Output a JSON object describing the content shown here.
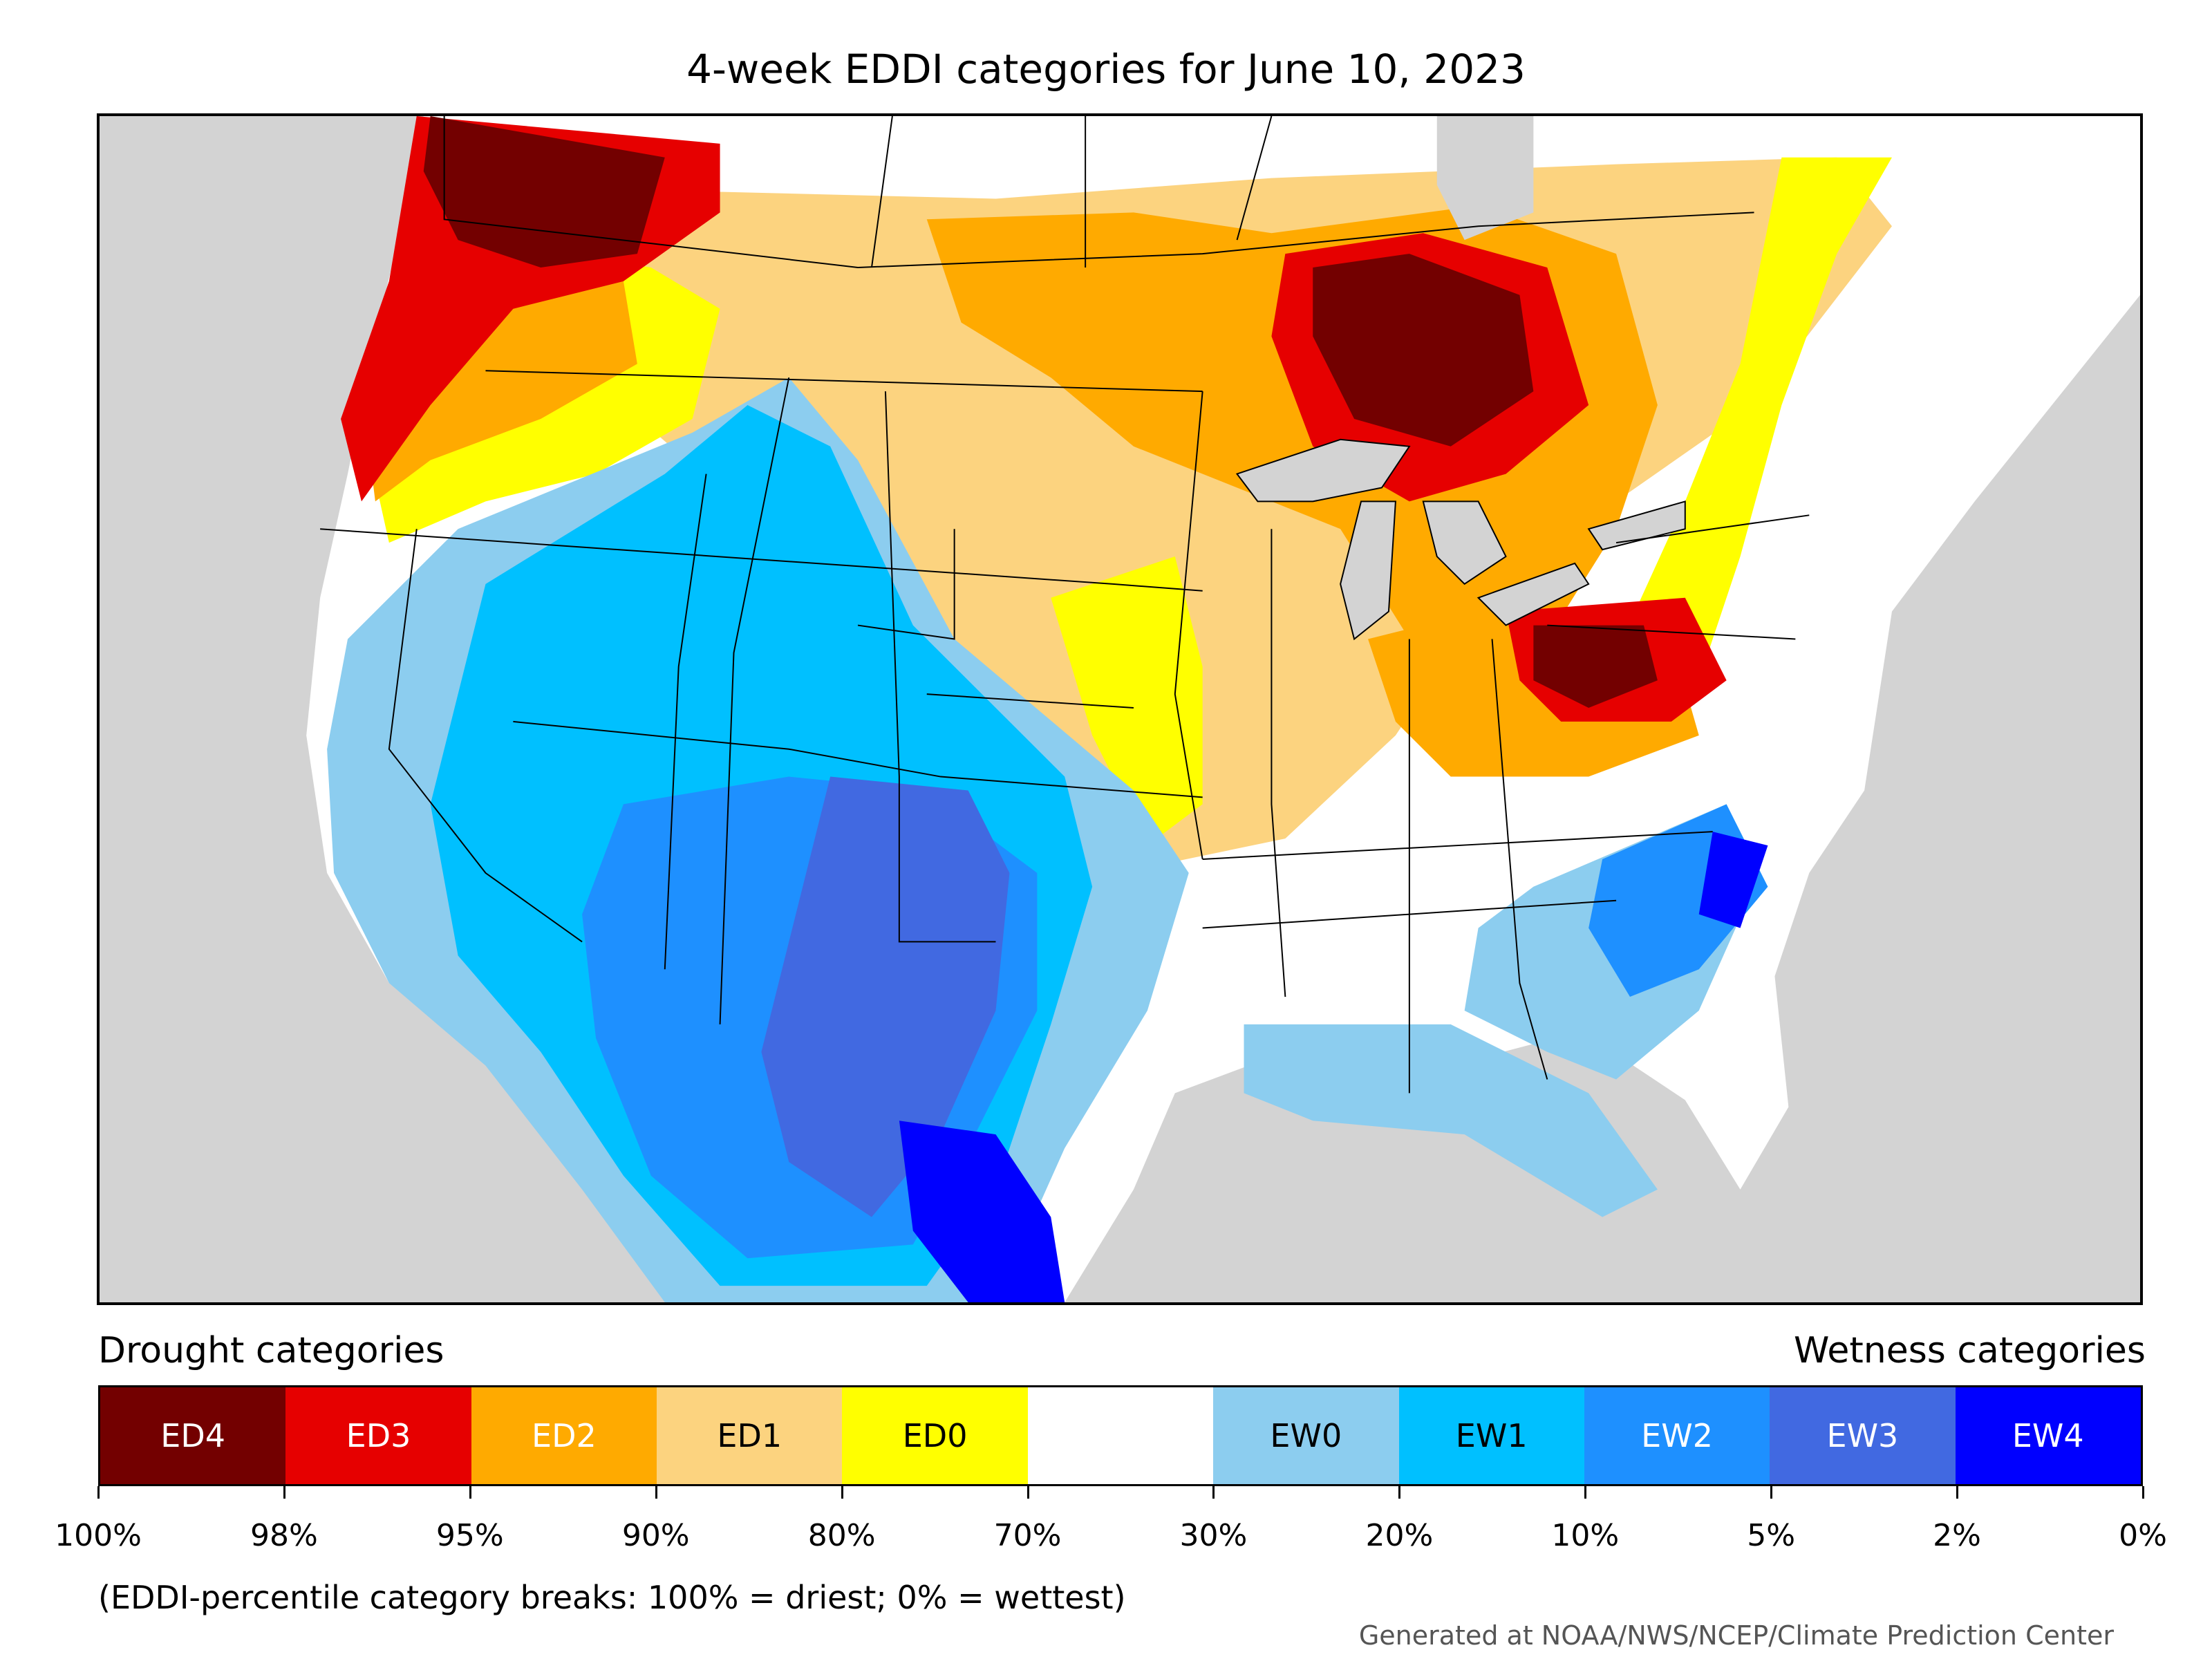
{
  "title": "4-week EDDI categories for June 10, 2023",
  "map": {
    "background_color": "#d3d3d3",
    "region_note": "Contiguous United States and southern Canada",
    "boundaries_color": "#000000"
  },
  "legend": {
    "drought_heading": "Drought categories",
    "wetness_heading": "Wetness categories",
    "categories": [
      {
        "label": "ED4",
        "color": "#730000",
        "text_color": "#ffffff"
      },
      {
        "label": "ED3",
        "color": "#e60000",
        "text_color": "#ffffff"
      },
      {
        "label": "ED2",
        "color": "#ffaa00",
        "text_color": "#ffffff"
      },
      {
        "label": "ED1",
        "color": "#fcd37f",
        "text_color": "#000000"
      },
      {
        "label": "ED0",
        "color": "#ffff00",
        "text_color": "#000000"
      },
      {
        "label": "",
        "color": "#ffffff",
        "text_color": "#000000"
      },
      {
        "label": "EW0",
        "color": "#8ccdef",
        "text_color": "#000000"
      },
      {
        "label": "EW1",
        "color": "#00c0ff",
        "text_color": "#000000"
      },
      {
        "label": "EW2",
        "color": "#1e90ff",
        "text_color": "#ffffff"
      },
      {
        "label": "EW3",
        "color": "#4169e1",
        "text_color": "#ffffff"
      },
      {
        "label": "EW4",
        "color": "#0000ff",
        "text_color": "#ffffff"
      }
    ],
    "tick_labels": [
      "100%",
      "98%",
      "95%",
      "90%",
      "80%",
      "70%",
      "30%",
      "20%",
      "10%",
      "5%",
      "2%",
      "0%"
    ],
    "breaks_note": "(EDDI-percentile category breaks: 100% = driest; 0% = wettest)"
  },
  "credit": "Generated at NOAA/NWS/NCEP/Climate Prediction Center"
}
